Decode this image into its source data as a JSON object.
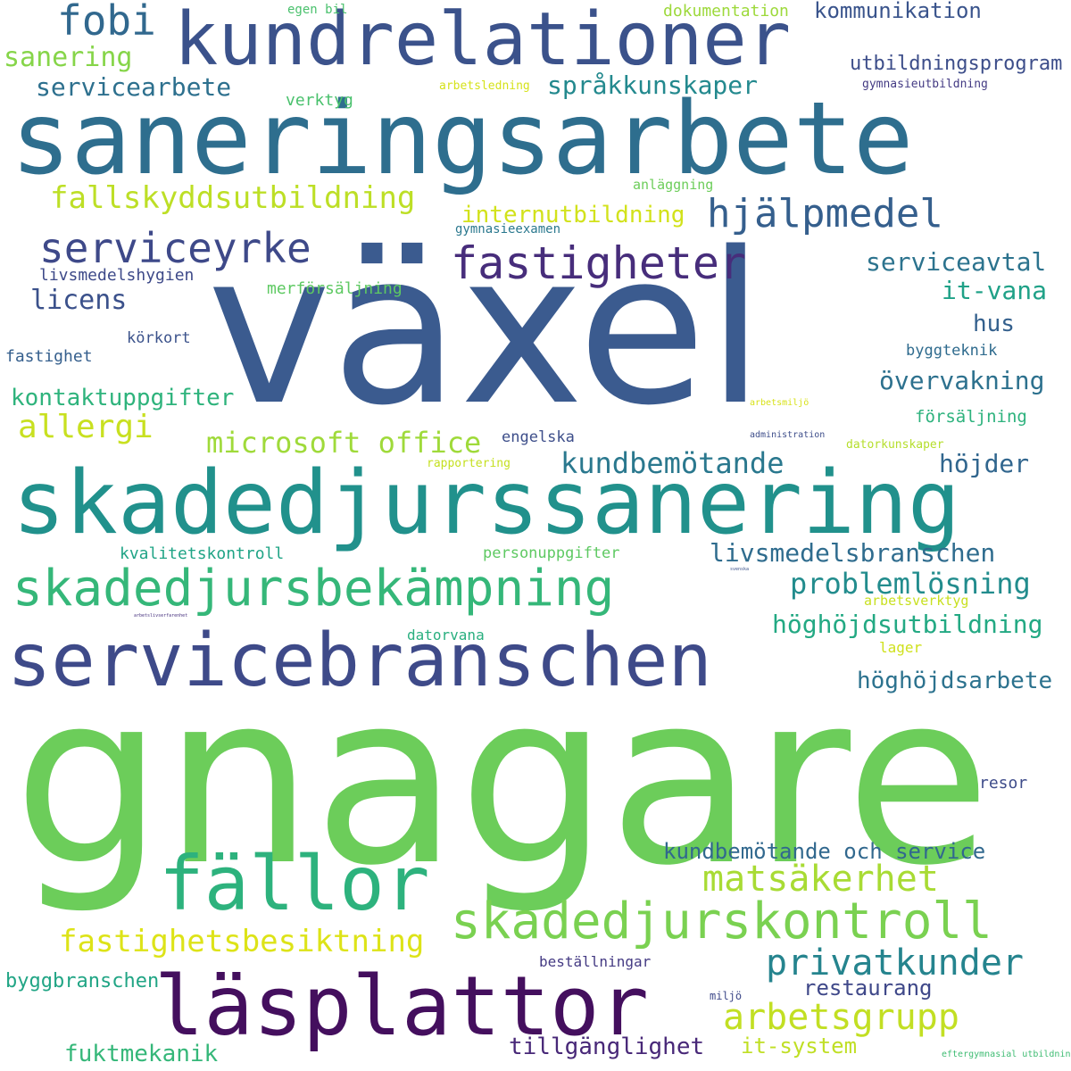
{
  "words": [
    {
      "id": "vaxel",
      "text": "växel",
      "color": "#3b5b8f"
    },
    {
      "id": "gnagare",
      "text": "gnagare",
      "color": "#6ccd5a"
    },
    {
      "id": "saneringsarbete",
      "text": "saneringsarbete",
      "color": "#2e6e8e"
    },
    {
      "id": "skadedjurssanering",
      "text": "skadedjurssanering",
      "color": "#21918c"
    },
    {
      "id": "kundrelationer",
      "text": "kundrelationer",
      "color": "#3b528b"
    },
    {
      "id": "servicebranschen",
      "text": "servicebranschen",
      "color": "#3e4a89"
    },
    {
      "id": "lasplattor",
      "text": "läsplattor",
      "color": "#440f5e"
    },
    {
      "id": "fallor",
      "text": "fällor",
      "color": "#2db27d"
    },
    {
      "id": "skadedjursbekampning",
      "text": "skadedjursbekämpning",
      "color": "#35b779"
    },
    {
      "id": "skadedjurskontroll",
      "text": "skadedjurskontroll",
      "color": "#7ad151"
    },
    {
      "id": "fastigheter",
      "text": "fastigheter",
      "color": "#472d7b"
    },
    {
      "id": "serviceyrke",
      "text": "serviceyrke",
      "color": "#3e4989"
    },
    {
      "id": "hjalpmedel",
      "text": "hjälpmedel",
      "color": "#355f8d"
    },
    {
      "id": "fobi",
      "text": "fobi",
      "color": "#31688e"
    },
    {
      "id": "fallskyddsutbildning",
      "text": "fallskyddsutbildning",
      "color": "#bddf26"
    },
    {
      "id": "arbetsgrupp",
      "text": "arbetsgrupp",
      "color": "#c2df23"
    },
    {
      "id": "matsakerhet",
      "text": "matsäkerhet",
      "color": "#a8db34"
    },
    {
      "id": "privatkunder",
      "text": "privatkunder",
      "color": "#25848e"
    },
    {
      "id": "fastighetsbesiktning",
      "text": "fastighetsbesiktning",
      "color": "#dde318"
    },
    {
      "id": "allergi",
      "text": "allergi",
      "color": "#c8e020"
    },
    {
      "id": "microsoft_office",
      "text": "microsoft office",
      "color": "#9fda3a"
    },
    {
      "id": "kundbemotande",
      "text": "kundbemötande",
      "color": "#2a788e"
    },
    {
      "id": "problemlosning",
      "text": "problemlösning",
      "color": "#228c8d"
    },
    {
      "id": "sprakkunskaper",
      "text": "språkkunskaper",
      "color": "#23898e"
    },
    {
      "id": "servicearbete",
      "text": "servicearbete",
      "color": "#2d708e"
    },
    {
      "id": "sanering",
      "text": "sanering",
      "color": "#86d549"
    },
    {
      "id": "kommunikation",
      "text": "kommunikation",
      "color": "#3a548c"
    },
    {
      "id": "utbildningsprogram",
      "text": "utbildningsprogram",
      "color": "#3d4e8a"
    },
    {
      "id": "internutbildning",
      "text": "internutbildning",
      "color": "#d2e21b"
    },
    {
      "id": "serviceavtal",
      "text": "serviceavtal",
      "color": "#2c738e"
    },
    {
      "id": "it_vana",
      "text": "it-vana",
      "color": "#1fa187"
    },
    {
      "id": "licens",
      "text": "licens",
      "color": "#3b518b"
    },
    {
      "id": "hus",
      "text": "hus",
      "color": "#34608d"
    },
    {
      "id": "overvakning",
      "text": "övervakning",
      "color": "#2d718e"
    },
    {
      "id": "kontaktuppgifter",
      "text": "kontaktuppgifter",
      "color": "#2eb37c"
    },
    {
      "id": "hojder",
      "text": "höjder",
      "color": "#31668e"
    },
    {
      "id": "livsmedelsbranschen",
      "text": "livsmedelsbranschen",
      "color": "#2f6c8e"
    },
    {
      "id": "hoghojdsutbildning",
      "text": "höghöjdsutbildning",
      "color": "#23a983"
    },
    {
      "id": "hoghojdsarbete",
      "text": "höghöjdsarbete",
      "color": "#2c728e"
    },
    {
      "id": "kundbemotande_och_service",
      "text": "kundbemötande och service",
      "color": "#31688e"
    },
    {
      "id": "tillganglighet",
      "text": "tillgänglighet",
      "color": "#482878"
    },
    {
      "id": "it_system",
      "text": "it-system",
      "color": "#c0df25"
    },
    {
      "id": "restaurang",
      "text": "restaurang",
      "color": "#3f4889"
    },
    {
      "id": "fuktmekanik",
      "text": "fuktmekanik",
      "color": "#35b779"
    },
    {
      "id": "byggbranschen",
      "text": "byggbranschen",
      "color": "#21a585"
    },
    {
      "id": "bestallningar",
      "text": "beställningar",
      "color": "#443a83"
    },
    {
      "id": "resor",
      "text": "resor",
      "color": "#3e4c8a"
    },
    {
      "id": "egen_bil",
      "text": "egen bil",
      "color": "#4ac16d"
    },
    {
      "id": "dokumentation",
      "text": "dokumentation",
      "color": "#9dd93b"
    },
    {
      "id": "verktyg",
      "text": "verktyg",
      "color": "#4ac16d"
    },
    {
      "id": "arbetsledning",
      "text": "arbetsledning",
      "color": "#d5e21a"
    },
    {
      "id": "gymnasieutbildning",
      "text": "gymnasieutbildning",
      "color": "#443b84"
    },
    {
      "id": "anlaggning",
      "text": "anläggning",
      "color": "#6ccd5a"
    },
    {
      "id": "gymnasieexamen",
      "text": "gymnasieexamen",
      "color": "#2a788e"
    },
    {
      "id": "livsmedelshygien",
      "text": "livsmedelshygien",
      "color": "#3e4a89"
    },
    {
      "id": "merforsaljning",
      "text": "merförsäljning",
      "color": "#5ec962"
    },
    {
      "id": "korkort",
      "text": "körkort",
      "color": "#3b528b"
    },
    {
      "id": "fastighet",
      "text": "fastighet",
      "color": "#355f8d"
    },
    {
      "id": "byggteknik",
      "text": "byggteknik",
      "color": "#2f6b8e"
    },
    {
      "id": "forsaljning",
      "text": "försäljning",
      "color": "#2db27d"
    },
    {
      "id": "arbetsmiljo",
      "text": "arbetsmiljö",
      "color": "#d8e219"
    },
    {
      "id": "administration",
      "text": "administration",
      "color": "#3d4d8a"
    },
    {
      "id": "datorkunskaper",
      "text": "datorkunskaper",
      "color": "#b5de2b"
    },
    {
      "id": "engelska",
      "text": "engelska",
      "color": "#3d4e8a"
    },
    {
      "id": "rapportering",
      "text": "rapportering",
      "color": "#c5e021"
    },
    {
      "id": "kvalitetskontroll",
      "text": "kvalitetskontroll",
      "color": "#20a486"
    },
    {
      "id": "personuppgifter",
      "text": "personuppgifter",
      "color": "#5ec962"
    },
    {
      "id": "arbetsverktyg",
      "text": "arbetsverktyg",
      "color": "#c8e020"
    },
    {
      "id": "datorvana",
      "text": "datorvana",
      "color": "#29af7f"
    },
    {
      "id": "lager",
      "text": "lager",
      "color": "#cfe11c"
    },
    {
      "id": "miljo",
      "text": "miljö",
      "color": "#3e4989"
    },
    {
      "id": "eftergymnasial_utbildning",
      "text": "eftergymnasial utbildning",
      "color": "#3fbc73"
    },
    {
      "id": "svenska",
      "text": "svenska",
      "color": "#3b528b"
    },
    {
      "id": "arbetslivserfarenhet",
      "text": "arbetslivserfarenhet",
      "color": "#46317e"
    }
  ]
}
